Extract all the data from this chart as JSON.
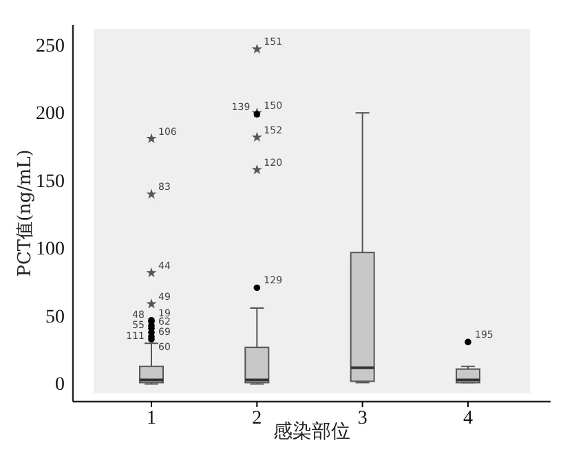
{
  "chart_data": {
    "type": "box",
    "xlabel": "感染部位",
    "ylabel": "PCT值(ng/mL)",
    "categories": [
      "1",
      "2",
      "3",
      "4"
    ],
    "ylim": [
      -13,
      265
    ],
    "yticks": [
      0,
      50,
      100,
      150,
      200,
      250
    ],
    "color": "#c8c8c8",
    "boxes": [
      {
        "low": 0,
        "q1": 1,
        "median": 3,
        "q3": 13,
        "high": 30
      },
      {
        "low": 0,
        "q1": 1,
        "median": 3,
        "q3": 27,
        "high": 56
      },
      {
        "low": 1,
        "q1": 2,
        "median": 12,
        "q3": 97,
        "high": 200
      },
      {
        "low": 1,
        "q1": 1,
        "median": 3,
        "q3": 11,
        "high": 13
      }
    ],
    "series": [
      {
        "type": "scatter",
        "marker": "star",
        "color": "#555555",
        "x": [
          "1",
          "1",
          "1",
          "1",
          "2",
          "2",
          "2",
          "2"
        ],
        "values": [
          59,
          82,
          140,
          181,
          247,
          200,
          182,
          158
        ]
      },
      {
        "type": "scatter",
        "marker": "circle",
        "color": "#000000",
        "x": [
          "1",
          "1",
          "1",
          "1",
          "1",
          "1",
          "1",
          "2",
          "2",
          "4"
        ],
        "values": [
          33,
          35,
          38,
          41,
          43,
          46,
          47,
          71,
          199,
          31
        ]
      }
    ],
    "annotations": [
      {
        "text": "106",
        "x": "1",
        "y": 181
      },
      {
        "text": "83",
        "x": "1",
        "y": 140
      },
      {
        "text": "44",
        "x": "1",
        "y": 82
      },
      {
        "text": "49",
        "x": "1",
        "y": 59
      },
      {
        "text": "19",
        "x": "1",
        "y": 47
      },
      {
        "text": "48",
        "x": "1",
        "y": 46
      },
      {
        "text": "62",
        "x": "1",
        "y": 41
      },
      {
        "text": "55",
        "x": "1",
        "y": 38
      },
      {
        "text": "69",
        "x": "1",
        "y": 33
      },
      {
        "text": "111",
        "x": "1",
        "y": 30
      },
      {
        "text": "60",
        "x": "1",
        "y": 22
      },
      {
        "text": "151",
        "x": "2",
        "y": 247
      },
      {
        "text": "150",
        "x": "2",
        "y": 200
      },
      {
        "text": "139",
        "x": "2",
        "y": 199
      },
      {
        "text": "152",
        "x": "2",
        "y": 182
      },
      {
        "text": "120",
        "x": "2",
        "y": 158
      },
      {
        "text": "129",
        "x": "2",
        "y": 71
      },
      {
        "text": "195",
        "x": "4",
        "y": 31
      }
    ],
    "grid": false
  }
}
